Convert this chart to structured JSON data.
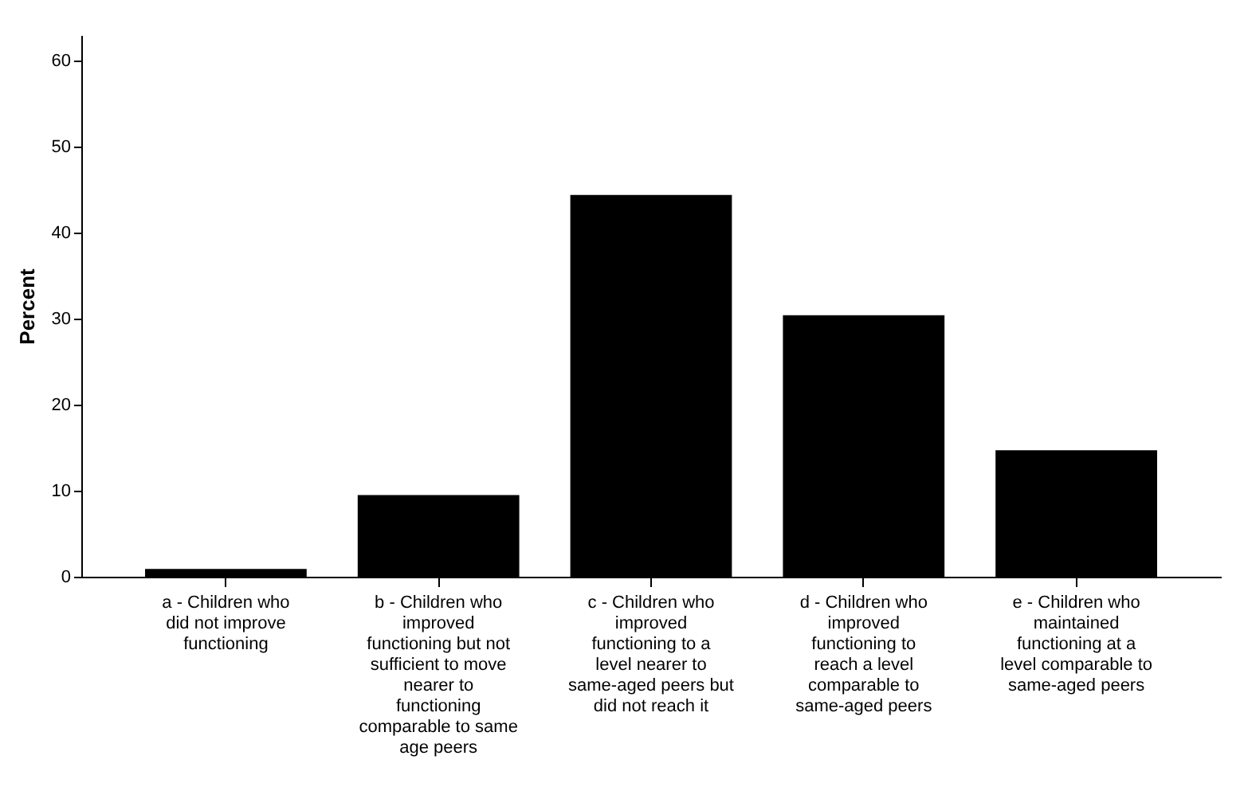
{
  "chart_data": {
    "type": "bar",
    "ylabel": "Percent",
    "categories": [
      "a - Children who did not improve functioning",
      "b - Children who improved functioning but not sufficient to move nearer to functioning comparable to same age peers",
      "c - Children who improved functioning to a level nearer to same-aged peers but did not reach it",
      "d - Children who improved functioning to reach a level comparable to same-aged peers",
      "e - Children who maintained functioning at a level comparable to same-aged peers"
    ],
    "values": [
      0.9,
      9.5,
      44.4,
      30.4,
      14.7
    ],
    "color": "#000000",
    "ylim": [
      0,
      63
    ],
    "yticks": [
      0,
      10,
      20,
      30,
      40,
      50,
      60
    ],
    "grid": false
  }
}
